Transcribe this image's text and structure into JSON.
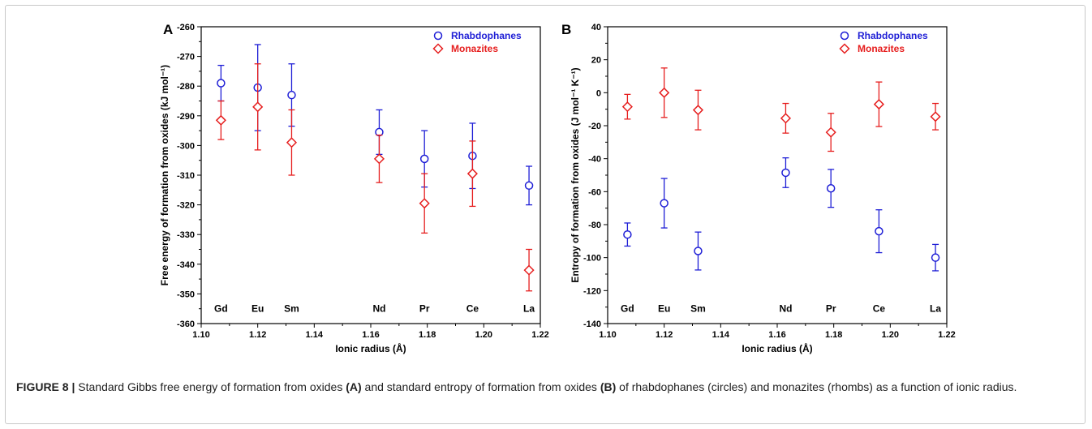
{
  "caption": {
    "label": "FIGURE 8 |",
    "parts": [
      {
        "text": " Standard Gibbs free energy of formation from oxides ",
        "bold": false
      },
      {
        "text": "(A)",
        "bold": true
      },
      {
        "text": " and standard entropy of formation from oxides ",
        "bold": false
      },
      {
        "text": "(B)",
        "bold": true
      },
      {
        "text": " of rhabdophanes (circles) and monazites (rhombs) as a function of ionic radius.",
        "bold": false
      }
    ]
  },
  "colors": {
    "rhabdophanes": "#1f1fd6",
    "monazites": "#e61e1e"
  },
  "chart_data": [
    {
      "panel": "A",
      "type": "scatter",
      "xlabel": "Ionic radius (Å)",
      "ylabel": "Free energy of formation from oxides (kJ mol⁻¹)",
      "xlim": [
        1.1,
        1.22
      ],
      "ylim": [
        -360,
        -260
      ],
      "xticks": [
        1.1,
        1.12,
        1.14,
        1.16,
        1.18,
        1.2,
        1.22
      ],
      "xtick_labels": [
        "1.10",
        "1.12",
        "1.14",
        "1.16",
        "1.18",
        "1.20",
        "1.22"
      ],
      "yticks": [
        -260,
        -270,
        -280,
        -290,
        -300,
        -310,
        -320,
        -330,
        -340,
        -350,
        -360
      ],
      "ytick_labels": [
        "-260",
        "-270",
        "-280",
        "-290",
        "-300",
        "-310",
        "-320",
        "-330",
        "-340",
        "-350",
        "-360"
      ],
      "element_labels": [
        {
          "text": "Gd",
          "x": 1.107
        },
        {
          "text": "Eu",
          "x": 1.12
        },
        {
          "text": "Sm",
          "x": 1.132
        },
        {
          "text": "Nd",
          "x": 1.163
        },
        {
          "text": "Pr",
          "x": 1.179
        },
        {
          "text": "Ce",
          "x": 1.196
        },
        {
          "text": "La",
          "x": 1.216
        }
      ],
      "element_label_y": -355,
      "legend_position": "top-right",
      "series": [
        {
          "name": "Rhabdophanes",
          "marker": "circle",
          "color_key": "rhabdophanes",
          "x": [
            1.107,
            1.12,
            1.132,
            1.163,
            1.179,
            1.196,
            1.216
          ],
          "y": [
            -279,
            -280.5,
            -283,
            -295.5,
            -304.5,
            -303.5,
            -313.5
          ],
          "err": [
            6,
            14.5,
            10.5,
            7.5,
            9.5,
            11,
            6.5
          ]
        },
        {
          "name": "Monazites",
          "marker": "diamond",
          "color_key": "monazites",
          "x": [
            1.107,
            1.12,
            1.132,
            1.163,
            1.179,
            1.196,
            1.216
          ],
          "y": [
            -291.5,
            -287,
            -299,
            -304.5,
            -319.5,
            -309.5,
            -342
          ],
          "err": [
            6.5,
            14.5,
            11,
            8,
            10,
            11,
            7
          ]
        }
      ]
    },
    {
      "panel": "B",
      "type": "scatter",
      "xlabel": "Ionic radius (Å)",
      "ylabel": "Entropy of formation from oxides (J mol⁻¹ K⁻¹)",
      "xlim": [
        1.1,
        1.22
      ],
      "ylim": [
        -140,
        40
      ],
      "xticks": [
        1.1,
        1.12,
        1.14,
        1.16,
        1.18,
        1.2,
        1.22
      ],
      "xtick_labels": [
        "1.10",
        "1.12",
        "1.14",
        "1.16",
        "1.18",
        "1.20",
        "1.22"
      ],
      "yticks": [
        40,
        20,
        0,
        -20,
        -40,
        -60,
        -80,
        -100,
        -120,
        -140
      ],
      "ytick_labels": [
        "40",
        "20",
        "0",
        "-20",
        "-40",
        "-60",
        "-80",
        "-100",
        "-120",
        "-140"
      ],
      "element_labels": [
        {
          "text": "Gd",
          "x": 1.107
        },
        {
          "text": "Eu",
          "x": 1.12
        },
        {
          "text": "Sm",
          "x": 1.132
        },
        {
          "text": "Nd",
          "x": 1.163
        },
        {
          "text": "Pr",
          "x": 1.179
        },
        {
          "text": "Ce",
          "x": 1.196
        },
        {
          "text": "La",
          "x": 1.216
        }
      ],
      "element_label_y": -131,
      "legend_position": "top-right",
      "series": [
        {
          "name": "Rhabdophanes",
          "marker": "circle",
          "color_key": "rhabdophanes",
          "x": [
            1.107,
            1.12,
            1.132,
            1.163,
            1.179,
            1.196,
            1.216
          ],
          "y": [
            -86,
            -67,
            -96,
            -48.5,
            -58,
            -84,
            -100
          ],
          "err": [
            7,
            15,
            11.5,
            9,
            11.5,
            13,
            8
          ]
        },
        {
          "name": "Monazites",
          "marker": "diamond",
          "color_key": "monazites",
          "x": [
            1.107,
            1.12,
            1.132,
            1.163,
            1.179,
            1.196,
            1.216
          ],
          "y": [
            -8.5,
            0,
            -10.5,
            -15.5,
            -24,
            -7,
            -14.5
          ],
          "err": [
            7.5,
            15,
            12,
            9,
            11.5,
            13.5,
            8
          ]
        }
      ]
    }
  ]
}
